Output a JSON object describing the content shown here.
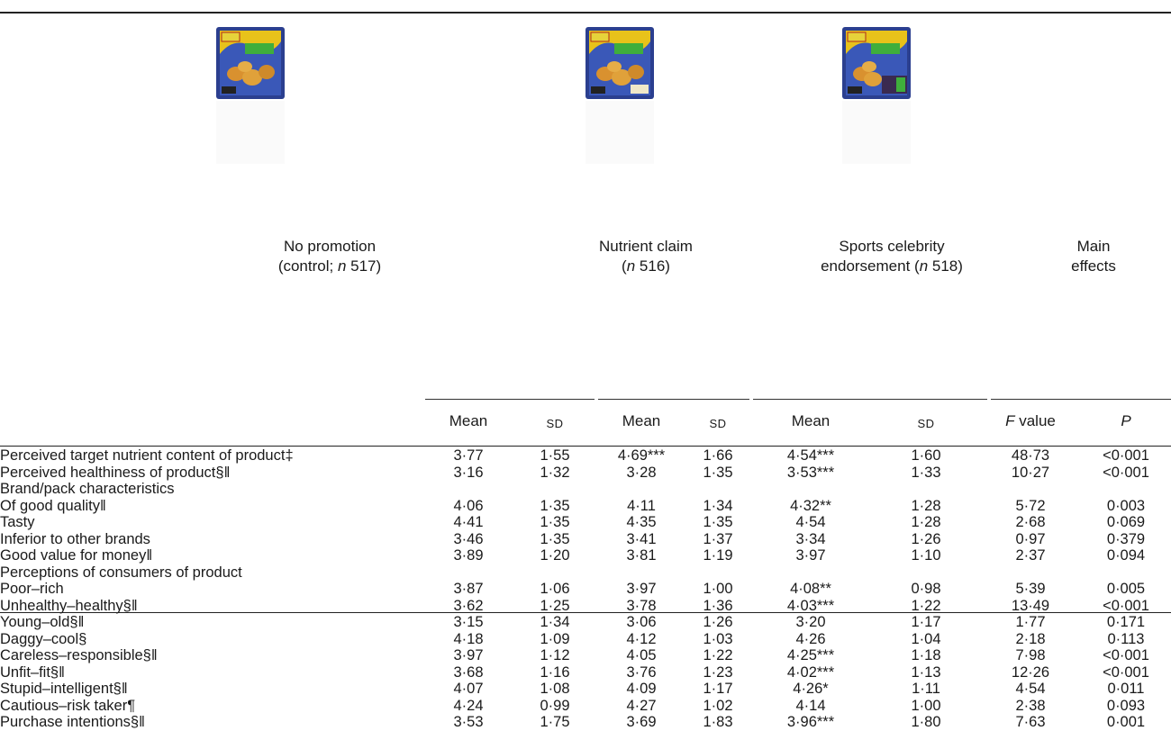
{
  "groups": [
    {
      "line1": "No promotion",
      "line2": "(control; ",
      "n_italic": "n",
      "n_value": " 517)",
      "line2_tail": "",
      "pack_image": "chicken-nuggets-pack-plain"
    },
    {
      "line1": "Nutrient claim",
      "line2": "(",
      "n_italic": "n",
      "n_value": " 516)",
      "line2_tail": "",
      "pack_image": "chicken-nuggets-pack-nutrient-claim"
    },
    {
      "line1": "Sports celebrity",
      "line2": "endorsement (",
      "n_italic": "n",
      "n_value": " 518)",
      "line2_tail": "",
      "pack_image": "chicken-nuggets-pack-celebrity"
    },
    {
      "line1": "Main",
      "line2": "effects",
      "n_italic": "",
      "n_value": "",
      "line2_tail": ""
    }
  ],
  "subheaders": {
    "mean": "Mean",
    "sd": "SD",
    "f_value_italic": "F",
    "f_value_rest": " value",
    "p": "P"
  },
  "rows": [
    {
      "label": "Perceived target nutrient content of product‡",
      "indent": false,
      "cells": [
        "3·77",
        "1·55",
        "4·69***",
        "1·66",
        "4·54***",
        "1·60",
        "48·73",
        "<0·001"
      ]
    },
    {
      "label": "Perceived healthiness of product§‖",
      "indent": false,
      "cells": [
        "3·16",
        "1·32",
        "3·28",
        "1·35",
        "3·53***",
        "1·33",
        "10·27",
        "<0·001"
      ]
    },
    {
      "label": "Brand/pack characteristics",
      "indent": false,
      "cells": [
        "",
        "",
        "",
        "",
        "",
        "",
        "",
        ""
      ]
    },
    {
      "label": "Of good quality‖",
      "indent": true,
      "cells": [
        "4·06",
        "1·35",
        "4·11",
        "1·34",
        "4·32**",
        "1·28",
        "5·72",
        "0·003"
      ]
    },
    {
      "label": "Tasty",
      "indent": true,
      "cells": [
        "4·41",
        "1·35",
        "4·35",
        "1·35",
        "4·54",
        "1·28",
        "2·68",
        "0·069"
      ]
    },
    {
      "label": "Inferior to other brands",
      "indent": true,
      "cells": [
        "3·46",
        "1·35",
        "3·41",
        "1·37",
        "3·34",
        "1·26",
        "0·97",
        "0·379"
      ]
    },
    {
      "label": "Good value for money‖",
      "indent": true,
      "cells": [
        "3·89",
        "1·20",
        "3·81",
        "1·19",
        "3·97",
        "1·10",
        "2·37",
        "0·094"
      ]
    },
    {
      "label": "Perceptions of consumers of product",
      "indent": false,
      "cells": [
        "",
        "",
        "",
        "",
        "",
        "",
        "",
        ""
      ]
    },
    {
      "label": "Poor–rich",
      "indent": true,
      "cells": [
        "3·87",
        "1·06",
        "3·97",
        "1·00",
        "4·08**",
        "0·98",
        "5·39",
        "0·005"
      ]
    },
    {
      "label": "Unhealthy–healthy§‖",
      "indent": true,
      "cells": [
        "3·62",
        "1·25",
        "3·78",
        "1·36",
        "4·03***",
        "1·22",
        "13·49",
        "<0·001"
      ]
    },
    {
      "label": "Young–old§‖",
      "indent": true,
      "cells": [
        "3·15",
        "1·34",
        "3·06",
        "1·26",
        "3·20",
        "1·17",
        "1·77",
        "0·171"
      ]
    },
    {
      "label": "Daggy–cool§",
      "indent": true,
      "cells": [
        "4·18",
        "1·09",
        "4·12",
        "1·03",
        "4·26",
        "1·04",
        "2·18",
        "0·113"
      ]
    },
    {
      "label": "Careless–responsible§‖",
      "indent": true,
      "cells": [
        "3·97",
        "1·12",
        "4·05",
        "1·22",
        "4·25***",
        "1·18",
        "7·98",
        "<0·001"
      ]
    },
    {
      "label": "Unfit–fit§‖",
      "indent": true,
      "cells": [
        "3·68",
        "1·16",
        "3·76",
        "1·23",
        "4·02***",
        "1·13",
        "12·26",
        "<0·001"
      ]
    },
    {
      "label": "Stupid–intelligent§‖",
      "indent": true,
      "cells": [
        "4·07",
        "1·08",
        "4·09",
        "1·17",
        "4·26*",
        "1·11",
        "4·54",
        "0·011"
      ]
    },
    {
      "label": "Cautious–risk taker¶",
      "indent": true,
      "cells": [
        "4·24",
        "0·99",
        "4·27",
        "1·02",
        "4·14",
        "1·00",
        "2·38",
        "0·093"
      ]
    },
    {
      "label": "Purchase intentions§‖",
      "indent": false,
      "cells": [
        "3·53",
        "1·75",
        "3·69",
        "1·83",
        "3·96***",
        "1·80",
        "7·63",
        "0·001"
      ]
    }
  ]
}
